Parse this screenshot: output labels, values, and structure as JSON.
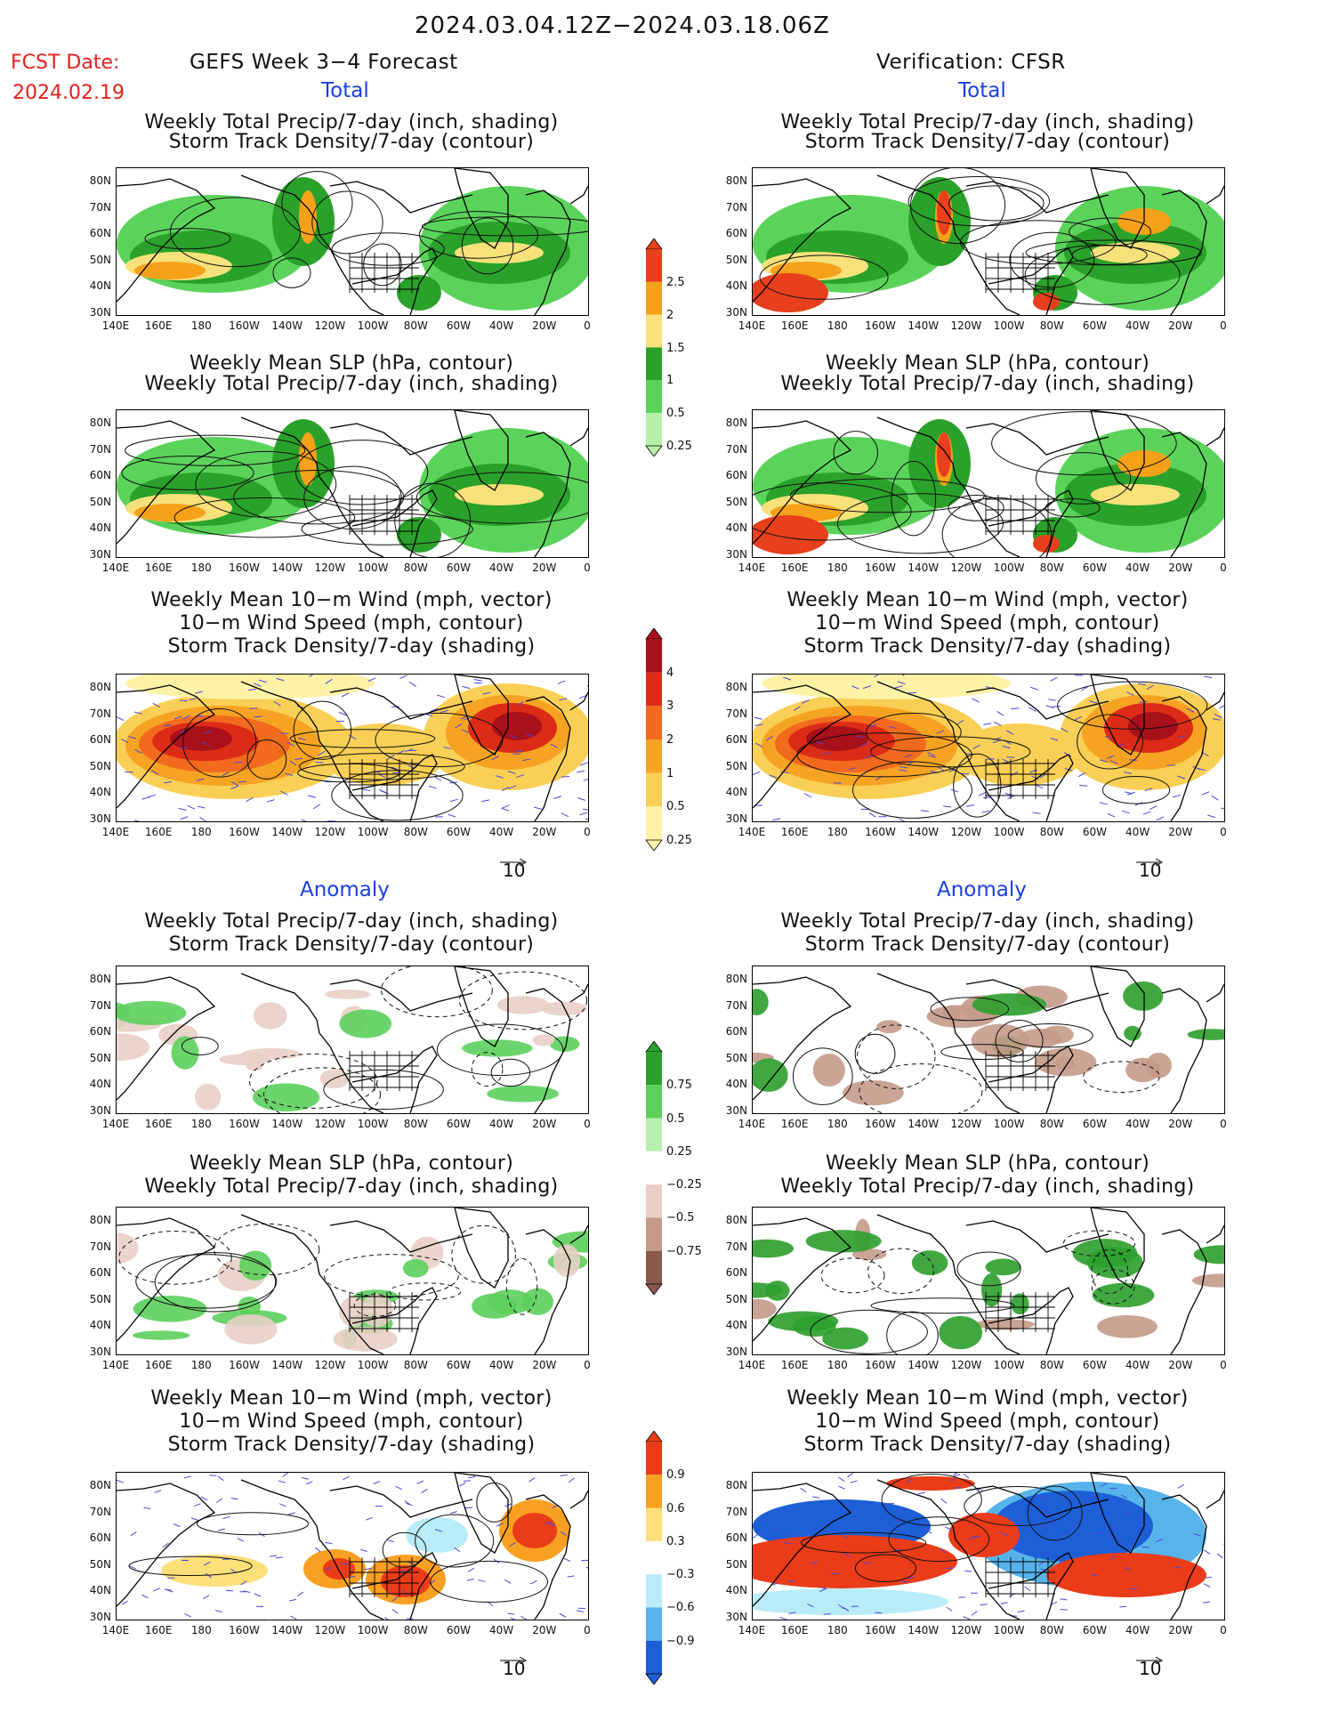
{
  "header": {
    "date_range": "2024.03.04.12Z−2024.03.18.06Z",
    "fcst_label": "FCST Date:",
    "fcst_date": "2024.02.19",
    "left_title": "GEFS Week 3−4 Forecast",
    "right_title": "Verification: CFSR",
    "total_label": "Total",
    "anomaly_label": "Anomaly"
  },
  "panels": {
    "precip_storm": [
      "Weekly Total Precip/7-day (inch, shading)",
      "Storm Track Density/7-day (contour)"
    ],
    "slp_precip": [
      "Weekly Mean SLP (hPa, contour)",
      "Weekly Total Precip/7-day (inch, shading)"
    ],
    "wind_storm": [
      "Weekly Mean 10−m Wind (mph, vector)",
      "10−m Wind Speed (mph, contour)",
      "Storm Track Density/7-day (shading)"
    ]
  },
  "axes": {
    "lats": [
      "80N",
      "70N",
      "60N",
      "50N",
      "40N",
      "30N"
    ],
    "lons": [
      "140E",
      "160E",
      "180",
      "160W",
      "140W",
      "120W",
      "100W",
      "80W",
      "60W",
      "40W",
      "20W",
      "0"
    ]
  },
  "vector_ref": "10",
  "colorbars": {
    "precip_total": {
      "labels": [
        "2.5",
        "2",
        "1.5",
        "1",
        "0.5",
        "0.25"
      ],
      "colors": [
        "#e8401c",
        "#f5a11a",
        "#f7e17b",
        "#2aa12a",
        "#5bd35b",
        "#b5f0a6"
      ]
    },
    "storm_total": {
      "labels": [
        "4",
        "3",
        "2",
        "1",
        "0.5",
        "0.25"
      ],
      "colors": [
        "#a8101a",
        "#dc2c18",
        "#f26a1d",
        "#f6a323",
        "#f9cf55",
        "#fdf2a6"
      ]
    },
    "precip_anom": {
      "labels": [
        "0.75",
        "0.5",
        "0.25",
        "−0.25",
        "−0.5",
        "−0.75"
      ],
      "colors": [
        "#2c9f2c",
        "#5ccf5c",
        "#b8efaf",
        "#ffffff",
        "#e8cfc5",
        "#c49a8a",
        "#8a5a4c"
      ]
    },
    "storm_anom": {
      "labels": [
        "0.9",
        "0.6",
        "0.3",
        "−0.3",
        "−0.6",
        "−0.9"
      ],
      "colors": [
        "#ea3c18",
        "#f8a021",
        "#fbe07a",
        "#ffffff",
        "#b8ecf8",
        "#56b4ea",
        "#1c5fd6"
      ]
    }
  }
}
